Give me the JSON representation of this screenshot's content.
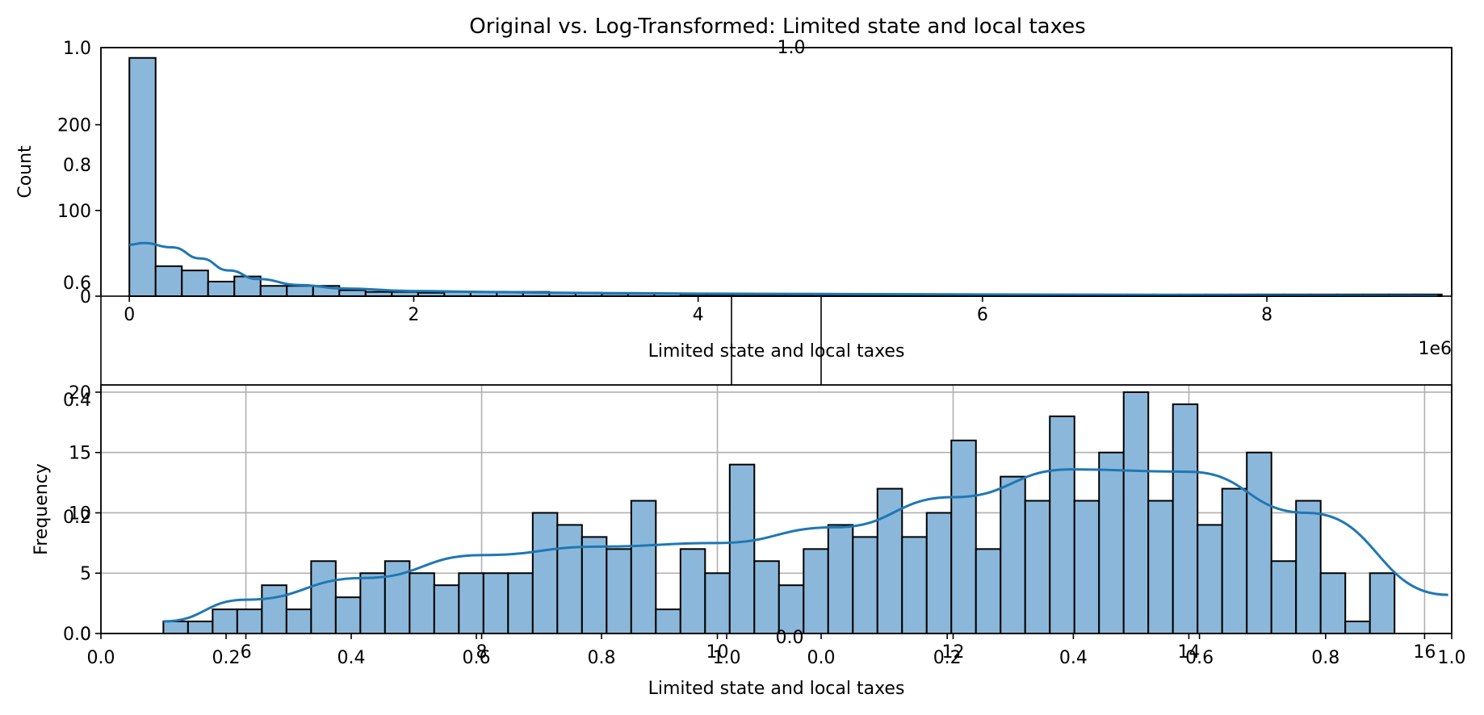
{
  "title": "Original vs. Log-Transformed: Limited state and local taxes",
  "colors": {
    "bar": "#8bb8da",
    "kde": "#1f77b4",
    "edge": "#000000",
    "grid": "#b0b0b0"
  },
  "chart_data": [
    {
      "type": "bar",
      "subtype": "histogram-with-kde",
      "xlabel": "Limited state and local taxes",
      "ylabel": "Count",
      "x_offset_label": "1e6",
      "xlim": [
        -0.2,
        9.3
      ],
      "ylim": [
        0,
        290
      ],
      "xticks": [
        0,
        2,
        4,
        6,
        8
      ],
      "yticks": [
        0,
        100,
        200
      ],
      "bin_start": 0,
      "bin_width": 0.1846,
      "counts": [
        278,
        35,
        30,
        17,
        23,
        12,
        12,
        12,
        7,
        5,
        5,
        4,
        5,
        5,
        5,
        5,
        4,
        4,
        3,
        3,
        3,
        2,
        2,
        2,
        2,
        2,
        2,
        2,
        2,
        2,
        2,
        2,
        2,
        2,
        2,
        2,
        2,
        2,
        2,
        2,
        2,
        2,
        2,
        2,
        2,
        2,
        2,
        2,
        2,
        2
      ],
      "kde_x": [
        0,
        0.1,
        0.3,
        0.5,
        0.7,
        0.9,
        1.2,
        1.5,
        2.0,
        2.5,
        3.0,
        4.0,
        5.0,
        6.0,
        7.0,
        8.0,
        9.2
      ],
      "kde_y": [
        60,
        62,
        57,
        44,
        30,
        20,
        13,
        9,
        6,
        5,
        4,
        3,
        2.5,
        2,
        1.5,
        1,
        0.5
      ],
      "grid": false
    },
    {
      "type": "bar",
      "subtype": "histogram-with-kde",
      "xlabel": "Limited state and local taxes",
      "ylabel": "Frequency",
      "xlim": [
        4.77,
        16.23
      ],
      "ylim": [
        0,
        20.6
      ],
      "xticks": [
        6,
        8,
        10,
        12,
        14,
        16
      ],
      "yticks": [
        0,
        5,
        10,
        15,
        20
      ],
      "bin_start": 5.3,
      "bin_width": 0.2089,
      "counts": [
        1,
        1,
        2,
        2,
        4,
        2,
        6,
        3,
        5,
        6,
        5,
        4,
        5,
        5,
        5,
        10,
        9,
        8,
        7,
        11,
        2,
        7,
        5,
        14,
        6,
        4,
        7,
        9,
        8,
        12,
        8,
        10,
        16,
        7,
        13,
        11,
        18,
        11,
        15,
        20,
        11,
        19,
        9,
        12,
        15,
        6,
        11,
        5,
        1,
        5
      ],
      "kde_x": [
        5.3,
        6,
        7,
        8,
        9,
        10,
        11,
        12,
        13,
        14,
        15,
        16.2
      ],
      "kde_y": [
        1,
        2.8,
        4.6,
        6.5,
        7.2,
        7.5,
        8.8,
        11.3,
        13.6,
        13.4,
        10,
        3.2
      ],
      "grid": true
    }
  ],
  "overlay": {
    "x_ticks": [
      "0.0",
      "0.2",
      "0.4",
      "0.6",
      "0.8",
      "1.0"
    ],
    "x_ticks_shifted": [
      "0.0",
      "0.2",
      "0.4",
      "0.6",
      "0.8",
      "1.0"
    ],
    "y_ticks_top": [
      "0.6",
      "0.8",
      "1.0"
    ],
    "y_ticks_bottom": [
      "0.0",
      "0.2",
      "0.4"
    ],
    "top_stray_label": "1.0"
  }
}
